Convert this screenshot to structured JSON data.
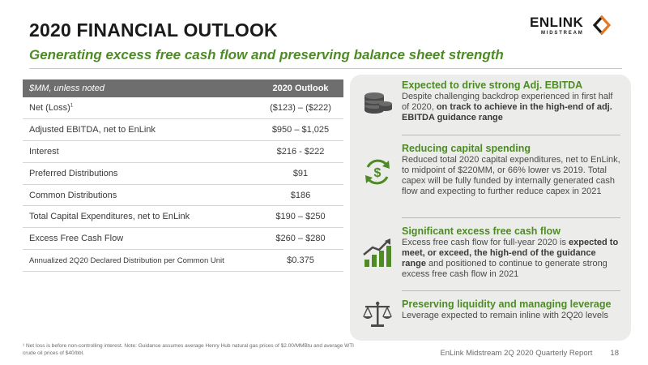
{
  "header": {
    "title": "2020 FINANCIAL OUTLOOK",
    "subtitle": "Generating excess free cash flow and preserving balance sheet strength"
  },
  "logo": {
    "main": "ENLINK",
    "sub": "MIDSTREAM"
  },
  "table": {
    "header_label": "$MM, unless noted",
    "header_value": "2020 Outlook",
    "rows": [
      {
        "label": "Net (Loss)",
        "sup": "1",
        "value": "($123) – ($222)"
      },
      {
        "label": "Adjusted EBITDA, net to EnLink",
        "value": "$950 – $1,025"
      },
      {
        "label": "Interest",
        "value": "$216 - $222"
      },
      {
        "label": "Preferred Distributions",
        "value": "$91"
      },
      {
        "label": "Common Distributions",
        "value": "$186"
      },
      {
        "label": "Total Capital Expenditures, net to EnLink",
        "value": "$190 – $250"
      },
      {
        "label": "Excess Free Cash Flow",
        "value": "$260 – $280"
      },
      {
        "label": "Annualized 2Q20 Declared Distribution per Common Unit",
        "value": "$0.375"
      }
    ]
  },
  "footnote": "¹ Net loss is before non-controlling interest. Note: Guidance assumes average Henry Hub natural gas prices of $2.00/MMBtu and average WTI crude oil prices of $40/bbl.",
  "panel": {
    "items": [
      {
        "icon": "coins-icon",
        "head": "Expected to drive strong Adj. EBITDA",
        "body_plain": "Despite challenging backdrop experienced in first half of 2020, ",
        "body_bold": "on track to achieve in the high-end of adj. EBITDA guidance range",
        "body_tail": ""
      },
      {
        "icon": "dollar-cycle-icon",
        "head": "Reducing capital spending",
        "body_plain": "Reduced total 2020 capital expenditures, net to EnLink, to midpoint of $220MM, or 66% lower vs 2019. Total capex will be fully funded by internally generated cash flow and expecting to further reduce capex in 2021",
        "body_bold": "",
        "body_tail": ""
      },
      {
        "icon": "growth-chart-icon",
        "head": "Significant excess free cash flow",
        "body_plain": "Excess free cash flow for full-year 2020 is ",
        "body_bold": "expected to meet, or exceed, the high-end of the guidance range",
        "body_tail": " and positioned to continue to generate strong excess free cash flow in 2021"
      },
      {
        "icon": "balance-scale-icon",
        "head": "Preserving liquidity and managing leverage",
        "body_plain": "Leverage expected to remain inline with 2Q20 levels",
        "body_bold": "",
        "body_tail": ""
      }
    ]
  },
  "footer": {
    "report": "EnLink Midstream 2Q 2020 Quarterly Report",
    "page": "18"
  }
}
